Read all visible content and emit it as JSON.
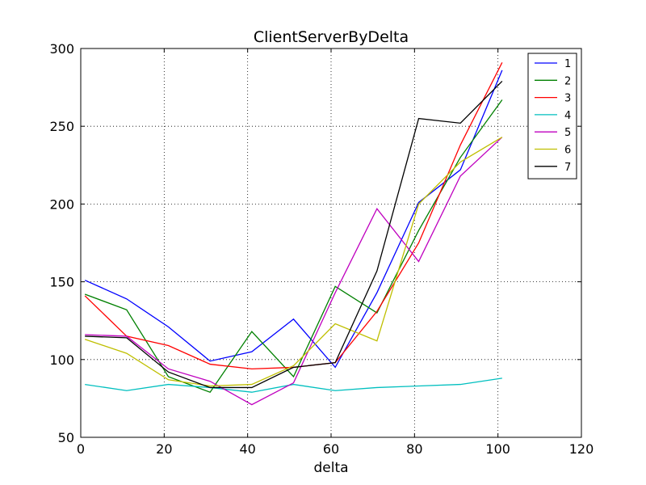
{
  "chart_data": {
    "type": "line",
    "title": "ClientServerByDelta",
    "xlabel": "delta",
    "ylabel": "",
    "xlim": [
      0,
      120
    ],
    "ylim": [
      50,
      300
    ],
    "xticks": [
      0,
      20,
      40,
      60,
      80,
      100,
      120
    ],
    "yticks": [
      50,
      100,
      150,
      200,
      250,
      300
    ],
    "grid": true,
    "legend_position": "top-right",
    "x": [
      1,
      11,
      21,
      31,
      41,
      51,
      61,
      71,
      81,
      91,
      101
    ],
    "series": [
      {
        "name": "1",
        "color": "#0000ff",
        "values": [
          151,
          139,
          121,
          99,
          105,
          126,
          95,
          143,
          201,
          222,
          286
        ]
      },
      {
        "name": "2",
        "color": "#008000",
        "values": [
          142,
          132,
          89,
          79,
          118,
          89,
          147,
          130,
          183,
          230,
          267
        ]
      },
      {
        "name": "3",
        "color": "#ff0000",
        "values": [
          141,
          115,
          109,
          97,
          94,
          95,
          98,
          131,
          175,
          238,
          291
        ]
      },
      {
        "name": "4",
        "color": "#00bfbf",
        "values": [
          84,
          80,
          84,
          82,
          79,
          84,
          80,
          82,
          83,
          84,
          88
        ]
      },
      {
        "name": "5",
        "color": "#bf00bf",
        "values": [
          116,
          115,
          94,
          86,
          71,
          85,
          143,
          197,
          163,
          218,
          243
        ]
      },
      {
        "name": "6",
        "color": "#bfbf00",
        "values": [
          113,
          104,
          87,
          83,
          84,
          96,
          123,
          112,
          200,
          227,
          243
        ]
      },
      {
        "name": "7",
        "color": "#000000",
        "values": [
          115,
          114,
          92,
          82,
          82,
          95,
          98,
          157,
          255,
          252,
          279
        ]
      }
    ]
  }
}
